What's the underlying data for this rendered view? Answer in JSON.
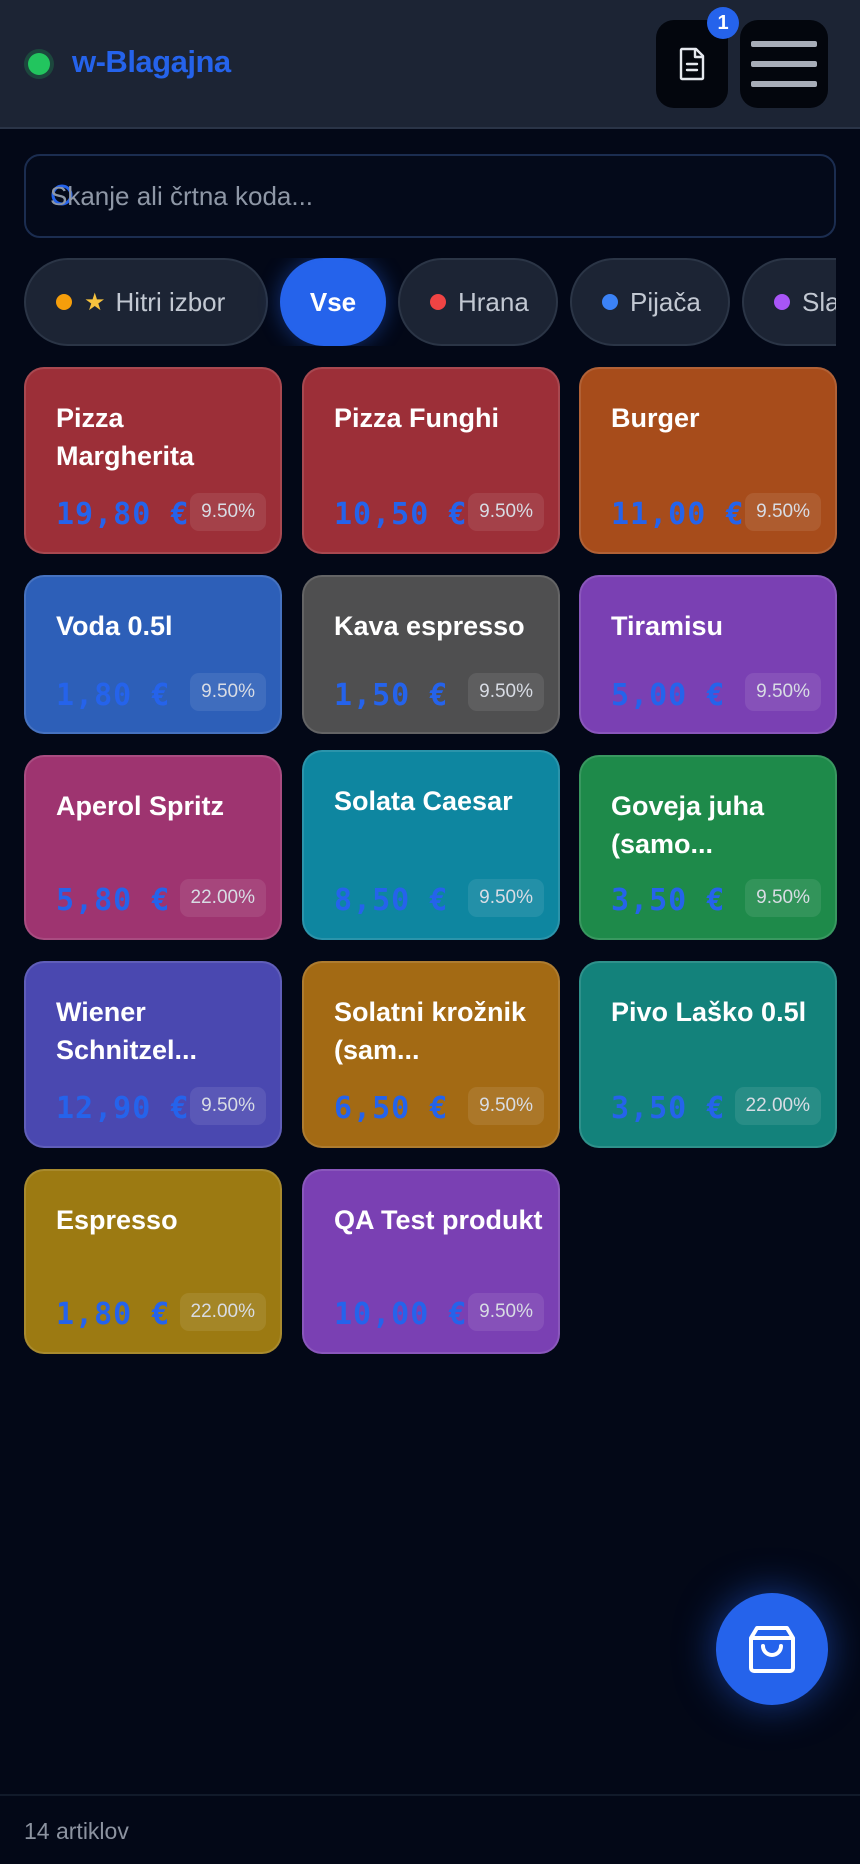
{
  "header": {
    "title": "w-Blagajna",
    "status_color": "#22c55e",
    "doc_badge_count": "1",
    "doc_icon": "document-icon",
    "menu_icon": "hamburger-menu-icon"
  },
  "search": {
    "placeholder": "Skanje ali črtna koda...",
    "icon": "search-icon"
  },
  "categories": [
    {
      "label": "Hitri izbor",
      "dot": "#f59e0b",
      "icon": "star-icon",
      "active": false
    },
    {
      "label": "Vse",
      "active": true
    },
    {
      "label": "Hrana",
      "dot": "#ef4444",
      "active": false
    },
    {
      "label": "Pijača",
      "dot": "#3b82f6",
      "active": false
    },
    {
      "label": "Sla",
      "dot": "#a855f7",
      "active": false
    }
  ],
  "products": [
    {
      "name": "Pizza Margherita",
      "price": "19,80 €",
      "vat": "9.50%",
      "color": "#9c2f38"
    },
    {
      "name": "Pizza Funghi",
      "price": "10,50 €",
      "vat": "9.50%",
      "color": "#9c2f38"
    },
    {
      "name": "Burger",
      "price": "11,00 €",
      "vat": "9.50%",
      "color": "#a74c1b"
    },
    {
      "name": "Voda 0.5l",
      "price": "1,80 €",
      "vat": "9.50%",
      "color": "#2d5fb8"
    },
    {
      "name": "Kava espresso",
      "price": "1,50 €",
      "vat": "9.50%",
      "color": "#4f4f50"
    },
    {
      "name": "Tiramisu",
      "price": "5,00 €",
      "vat": "9.50%",
      "color": "#7a40b3"
    },
    {
      "name": "Aperol Spritz",
      "price": "5,80 €",
      "vat": "22.00%",
      "color": "#9e3470"
    },
    {
      "name": "Solata Caesar",
      "price": "8,50 €",
      "vat": "9.50%",
      "color": "#0e86a0"
    },
    {
      "name": "Goveja juha (samo...",
      "price": "3,50 €",
      "vat": "9.50%",
      "color": "#1e8a4a"
    },
    {
      "name": "Wiener Schnitzel...",
      "price": "12,90 €",
      "vat": "9.50%",
      "color": "#4a48b0"
    },
    {
      "name": "Solatni krožnik (sam...",
      "price": "6,50 €",
      "vat": "9.50%",
      "color": "#a36a14"
    },
    {
      "name": "Pivo Laško 0.5l",
      "price": "3,50 €",
      "vat": "22.00%",
      "color": "#13827b"
    },
    {
      "name": "Espresso",
      "price": "1,80 €",
      "vat": "22.00%",
      "color": "#9c7a12"
    },
    {
      "name": "QA Test produkt",
      "price": "10,00 €",
      "vat": "9.50%",
      "color": "#7a40b3"
    }
  ],
  "cart_fab_icon": "shopping-bag-icon",
  "footer": {
    "count_text": "14 artiklov"
  }
}
